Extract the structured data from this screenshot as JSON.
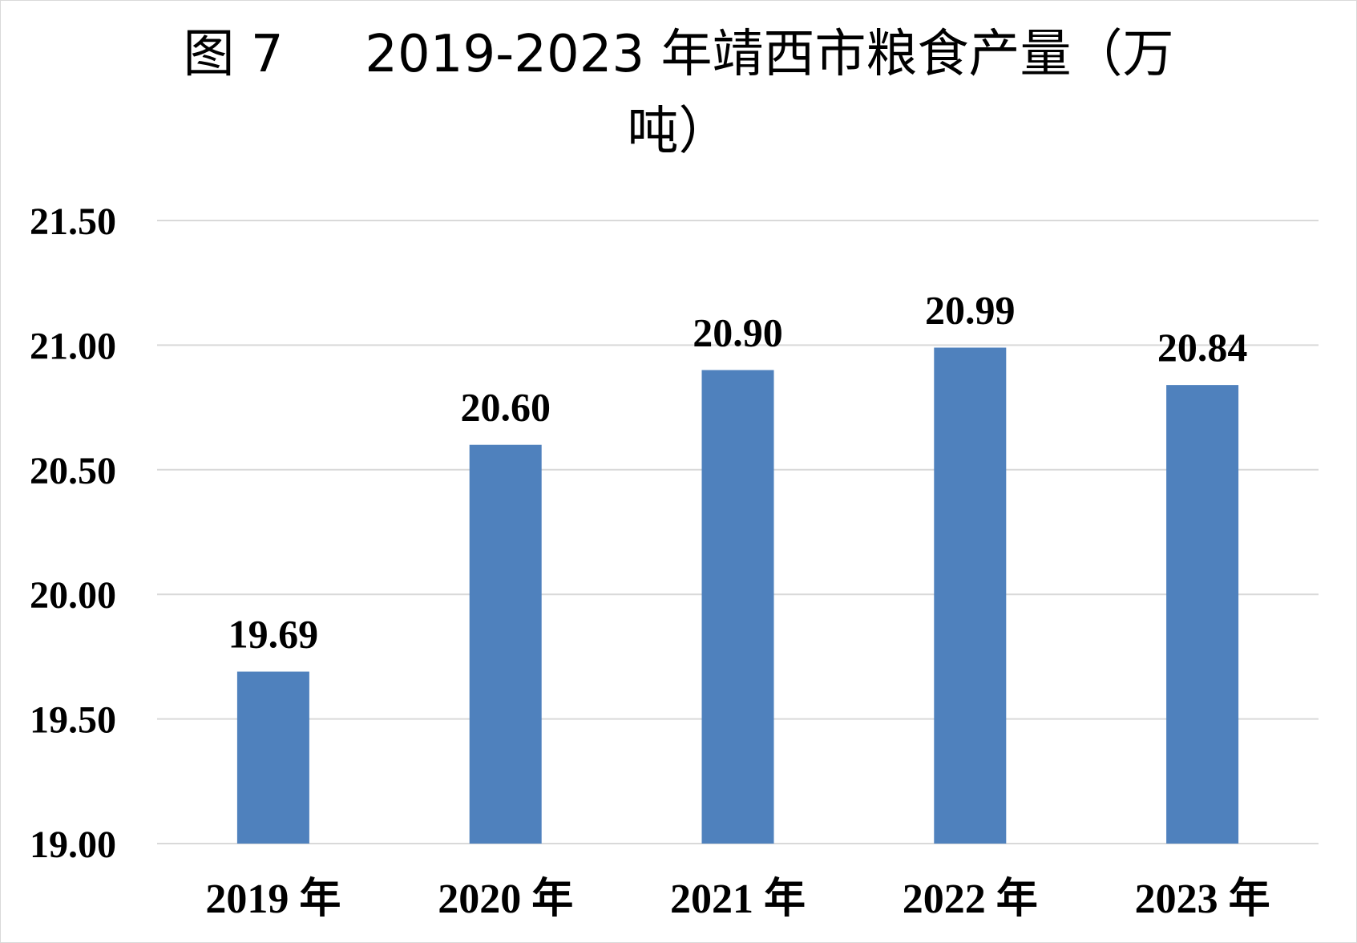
{
  "chart_data": {
    "type": "bar",
    "title_line1": "图 7     2019-2023 年靖西市粮食产量（万",
    "title_line2": "吨）",
    "categories": [
      "2019 年",
      "2020 年",
      "2021 年",
      "2022 年",
      "2023 年"
    ],
    "values": [
      19.69,
      20.6,
      20.9,
      20.99,
      20.84
    ],
    "value_labels": [
      "19.69",
      "20.60",
      "20.90",
      "20.99",
      "20.84"
    ],
    "y_ticks": [
      "19.00",
      "19.50",
      "20.00",
      "20.50",
      "21.00",
      "21.50"
    ],
    "ylim": [
      19.0,
      21.5
    ],
    "y_step": 0.5,
    "grid": true,
    "legend": "none",
    "bar_color": "#4f81bd",
    "grid_color": "#d9d9d9"
  }
}
